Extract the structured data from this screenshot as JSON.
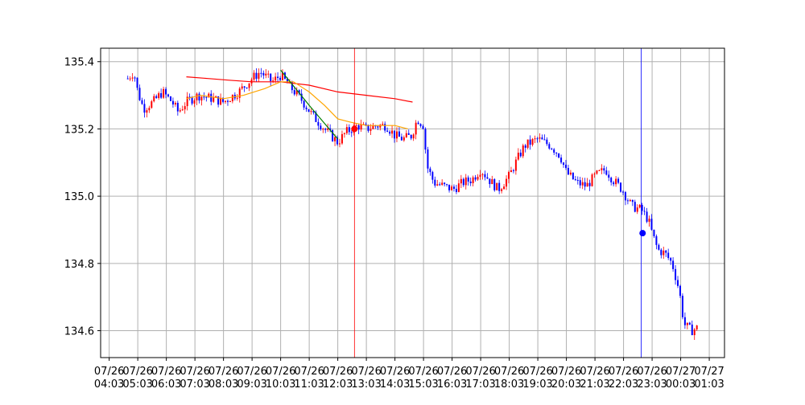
{
  "chart_data": {
    "type": "candlestick",
    "title": "",
    "xlabel": "",
    "ylabel": "",
    "grid": true,
    "ylim": [
      134.52,
      135.44
    ],
    "xlim": [
      "07/26 03:45",
      "07/27 01:35"
    ],
    "y_ticks": [
      "134.6",
      "134.8",
      "135.0",
      "135.2",
      "135.4"
    ],
    "y_tick_values": [
      134.6,
      134.8,
      135.0,
      135.2,
      135.4
    ],
    "x_ticks": [
      {
        "time": "07/26 04:03",
        "date": "07/26",
        "clock": "04:03"
      },
      {
        "time": "07/26 05:03",
        "date": "07/26",
        "clock": "05:03"
      },
      {
        "time": "07/26 06:03",
        "date": "07/26",
        "clock": "06:03"
      },
      {
        "time": "07/26 07:03",
        "date": "07/26",
        "clock": "07:03"
      },
      {
        "time": "07/26 08:03",
        "date": "07/26",
        "clock": "08:03"
      },
      {
        "time": "07/26 09:03",
        "date": "07/26",
        "clock": "09:03"
      },
      {
        "time": "07/26 10:03",
        "date": "07/26",
        "clock": "10:03"
      },
      {
        "time": "07/26 11:03",
        "date": "07/26",
        "clock": "11:03"
      },
      {
        "time": "07/26 12:03",
        "date": "07/26",
        "clock": "12:03"
      },
      {
        "time": "07/26 13:03",
        "date": "07/26",
        "clock": "13:03"
      },
      {
        "time": "07/26 14:03",
        "date": "07/26",
        "clock": "14:03"
      },
      {
        "time": "07/26 15:03",
        "date": "07/26",
        "clock": "15:03"
      },
      {
        "time": "07/26 16:03",
        "date": "07/26",
        "clock": "16:03"
      },
      {
        "time": "07/26 17:03",
        "date": "07/26",
        "clock": "17:03"
      },
      {
        "time": "07/26 18:03",
        "date": "07/26",
        "clock": "18:03"
      },
      {
        "time": "07/26 19:03",
        "date": "07/26",
        "clock": "19:03"
      },
      {
        "time": "07/26 20:03",
        "date": "07/26",
        "clock": "20:03"
      },
      {
        "time": "07/26 21:03",
        "date": "07/26",
        "clock": "21:03"
      },
      {
        "time": "07/26 22:03",
        "date": "07/26",
        "clock": "22:03"
      },
      {
        "time": "07/26 23:03",
        "date": "07/26",
        "clock": "23:03"
      },
      {
        "time": "07/27 00:03",
        "date": "07/27",
        "clock": "00:03"
      },
      {
        "time": "07/27 01:03",
        "date": "07/27",
        "clock": "01:03"
      }
    ],
    "price_path": [
      [
        "07/26 04:42",
        135.35
      ],
      [
        "07/26 04:55",
        135.37
      ],
      [
        "07/26 05:03",
        135.31
      ],
      [
        "07/26 05:15",
        135.26
      ],
      [
        "07/26 05:35",
        135.28
      ],
      [
        "07/26 05:55",
        135.31
      ],
      [
        "07/26 06:15",
        135.28
      ],
      [
        "07/26 06:28",
        135.25
      ],
      [
        "07/26 06:45",
        135.28
      ],
      [
        "07/26 07:10",
        135.3
      ],
      [
        "07/26 07:40",
        135.29
      ],
      [
        "07/26 08:03",
        135.28
      ],
      [
        "07/26 08:35",
        135.31
      ],
      [
        "07/26 09:03",
        135.35
      ],
      [
        "07/26 09:20",
        135.37
      ],
      [
        "07/26 09:45",
        135.34
      ],
      [
        "07/26 10:03",
        135.36
      ],
      [
        "07/26 10:20",
        135.33
      ],
      [
        "07/26 10:45",
        135.29
      ],
      [
        "07/26 11:10",
        135.24
      ],
      [
        "07/26 11:35",
        135.2
      ],
      [
        "07/26 12:03",
        135.16
      ],
      [
        "07/26 12:20",
        135.19
      ],
      [
        "07/26 12:45",
        135.21
      ],
      [
        "07/26 13:03",
        135.2
      ],
      [
        "07/26 13:25",
        135.21
      ],
      [
        "07/26 13:45",
        135.21
      ],
      [
        "07/26 14:03",
        135.18
      ],
      [
        "07/26 14:20",
        135.17
      ],
      [
        "07/26 14:38",
        135.18
      ],
      [
        "07/26 14:50",
        135.23
      ],
      [
        "07/26 15:03",
        135.21
      ],
      [
        "07/26 15:10",
        135.09
      ],
      [
        "07/26 15:25",
        135.04
      ],
      [
        "07/26 15:45",
        135.03
      ],
      [
        "07/26 16:05",
        135.02
      ],
      [
        "07/26 16:25",
        135.04
      ],
      [
        "07/26 16:45",
        135.05
      ],
      [
        "07/26 17:03",
        135.08
      ],
      [
        "07/26 17:20",
        135.05
      ],
      [
        "07/26 17:40",
        135.02
      ],
      [
        "07/26 18:03",
        135.06
      ],
      [
        "07/26 18:20",
        135.11
      ],
      [
        "07/26 18:35",
        135.15
      ],
      [
        "07/26 19:03",
        135.17
      ],
      [
        "07/26 19:30",
        135.15
      ],
      [
        "07/26 19:50",
        135.12
      ],
      [
        "07/26 20:03",
        135.07
      ],
      [
        "07/26 20:25",
        135.04
      ],
      [
        "07/26 20:45",
        135.03
      ],
      [
        "07/26 21:03",
        135.06
      ],
      [
        "07/26 21:25",
        135.08
      ],
      [
        "07/26 21:40",
        135.05
      ],
      [
        "07/26 22:00",
        135.02
      ],
      [
        "07/26 22:20",
        134.97
      ],
      [
        "07/26 22:40",
        134.96
      ],
      [
        "07/26 22:55",
        134.93
      ],
      [
        "07/26 23:03",
        134.89
      ],
      [
        "07/26 23:15",
        134.84
      ],
      [
        "07/26 23:30",
        134.83
      ],
      [
        "07/26 23:45",
        134.8
      ],
      [
        "07/27 00:00",
        134.72
      ],
      [
        "07/27 00:10",
        134.62
      ],
      [
        "07/27 00:25",
        134.6
      ],
      [
        "07/27 00:40",
        134.61
      ]
    ],
    "series": [
      {
        "role": "long moving average",
        "color": "#ff0000",
        "points": [
          [
            "07/26 06:45",
            135.355
          ],
          [
            "07/26 07:30",
            135.35
          ],
          [
            "07/26 08:15",
            135.345
          ],
          [
            "07/26 09:03",
            135.34
          ],
          [
            "07/26 10:03",
            135.34
          ],
          [
            "07/26 11:03",
            135.33
          ],
          [
            "07/26 12:03",
            135.31
          ],
          [
            "07/26 13:03",
            135.3
          ],
          [
            "07/26 14:03",
            135.29
          ],
          [
            "07/26 14:40",
            135.28
          ]
        ]
      },
      {
        "role": "short moving average",
        "color": "#ffa500",
        "points": [
          [
            "07/26 06:45",
            135.29
          ],
          [
            "07/26 07:15",
            135.3
          ],
          [
            "07/26 08:03",
            135.29
          ],
          [
            "07/26 08:45",
            135.3
          ],
          [
            "07/26 09:30",
            135.32
          ],
          [
            "07/26 10:03",
            135.34
          ],
          [
            "07/26 10:30",
            135.34
          ],
          [
            "07/26 11:03",
            135.31
          ],
          [
            "07/26 11:35",
            135.27
          ],
          [
            "07/26 12:03",
            135.23
          ],
          [
            "07/26 12:30",
            135.22
          ],
          [
            "07/26 13:03",
            135.21
          ],
          [
            "07/26 13:30",
            135.21
          ],
          [
            "07/26 14:03",
            135.21
          ],
          [
            "07/26 14:30",
            135.2
          ]
        ]
      },
      {
        "role": "trend line",
        "color": "#008000",
        "points": [
          [
            "07/26 10:03",
            135.375
          ],
          [
            "07/26 11:03",
            135.27
          ],
          [
            "07/26 12:03",
            135.17
          ]
        ]
      }
    ],
    "vertical_lines": [
      {
        "time": "07/26 12:38",
        "color": "#ff0000"
      },
      {
        "time": "07/26 22:40",
        "color": "#0000ff"
      }
    ],
    "markers": [
      {
        "time": "07/26 12:38",
        "value": 135.2,
        "color": "#ff0000"
      },
      {
        "time": "07/26 22:43",
        "value": 134.89,
        "color": "#0000ff"
      }
    ],
    "colors": {
      "up": "#ff0000",
      "down": "#0000ff",
      "grid": "#b0b0b0",
      "axis": "#000000"
    }
  }
}
